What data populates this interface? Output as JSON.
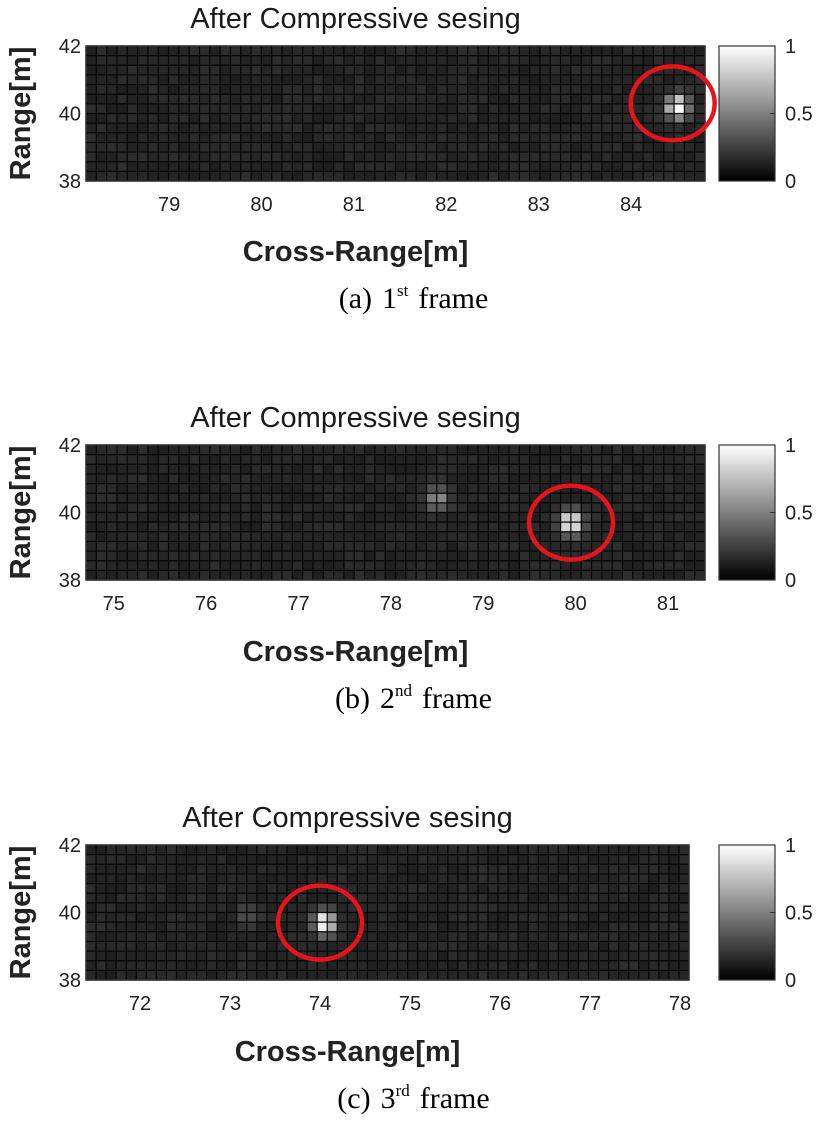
{
  "chart_data": [
    {
      "type": "heatmap",
      "title": "After Compressive sesing",
      "xlabel": "Cross-Range[m]",
      "ylabel": "Range[m]",
      "xlim": [
        78.1,
        84.8
      ],
      "ylim": [
        38,
        42
      ],
      "xticks": [
        79,
        80,
        81,
        82,
        83,
        84
      ],
      "yticks": [
        38,
        40,
        42
      ],
      "colorbar": {
        "ticks": [
          0,
          0.5,
          1
        ],
        "colormap": "gray"
      },
      "grid": true,
      "hotspots": [
        {
          "x": 84.5,
          "y": 40.2,
          "intensity": 1.0
        }
      ],
      "highlight_circle": {
        "x": 84.45,
        "y": 40.3,
        "color": "#e8141c"
      },
      "caption": {
        "prefix": "(a)",
        "number": "1",
        "suffix": "st",
        "word": "frame"
      }
    },
    {
      "type": "heatmap",
      "title": "After Compressive sesing",
      "xlabel": "Cross-Range[m]",
      "ylabel": "Range[m]",
      "xlim": [
        74.7,
        81.4
      ],
      "ylim": [
        38,
        42
      ],
      "xticks": [
        75,
        76,
        77,
        78,
        79,
        80,
        81
      ],
      "yticks": [
        38,
        40,
        42
      ],
      "colorbar": {
        "ticks": [
          0,
          0.5,
          1
        ],
        "colormap": "gray"
      },
      "grid": true,
      "hotspots": [
        {
          "x": 79.95,
          "y": 39.7,
          "intensity": 1.0
        },
        {
          "x": 78.5,
          "y": 40.4,
          "intensity": 0.45
        }
      ],
      "highlight_circle": {
        "x": 79.95,
        "y": 39.7,
        "color": "#e8141c"
      },
      "caption": {
        "prefix": "(b)",
        "number": "2",
        "suffix": "nd",
        "word": "frame"
      }
    },
    {
      "type": "heatmap",
      "title": "After Compressive sesing",
      "xlabel": "Cross-Range[m]",
      "ylabel": "Range[m]",
      "xlim": [
        71.4,
        78.1
      ],
      "ylim": [
        38,
        42
      ],
      "xticks": [
        72,
        73,
        74,
        75,
        76,
        77,
        78
      ],
      "yticks": [
        38,
        40,
        42
      ],
      "colorbar": {
        "ticks": [
          0,
          0.5,
          1
        ],
        "colormap": "gray"
      },
      "grid": true,
      "hotspots": [
        {
          "x": 74.05,
          "y": 39.7,
          "intensity": 1.0
        },
        {
          "x": 73.2,
          "y": 39.9,
          "intensity": 0.18
        }
      ],
      "highlight_circle": {
        "x": 74.0,
        "y": 39.7,
        "color": "#e8141c"
      },
      "caption": {
        "prefix": "(c)",
        "number": "3",
        "suffix": "rd",
        "word": "frame"
      }
    }
  ]
}
